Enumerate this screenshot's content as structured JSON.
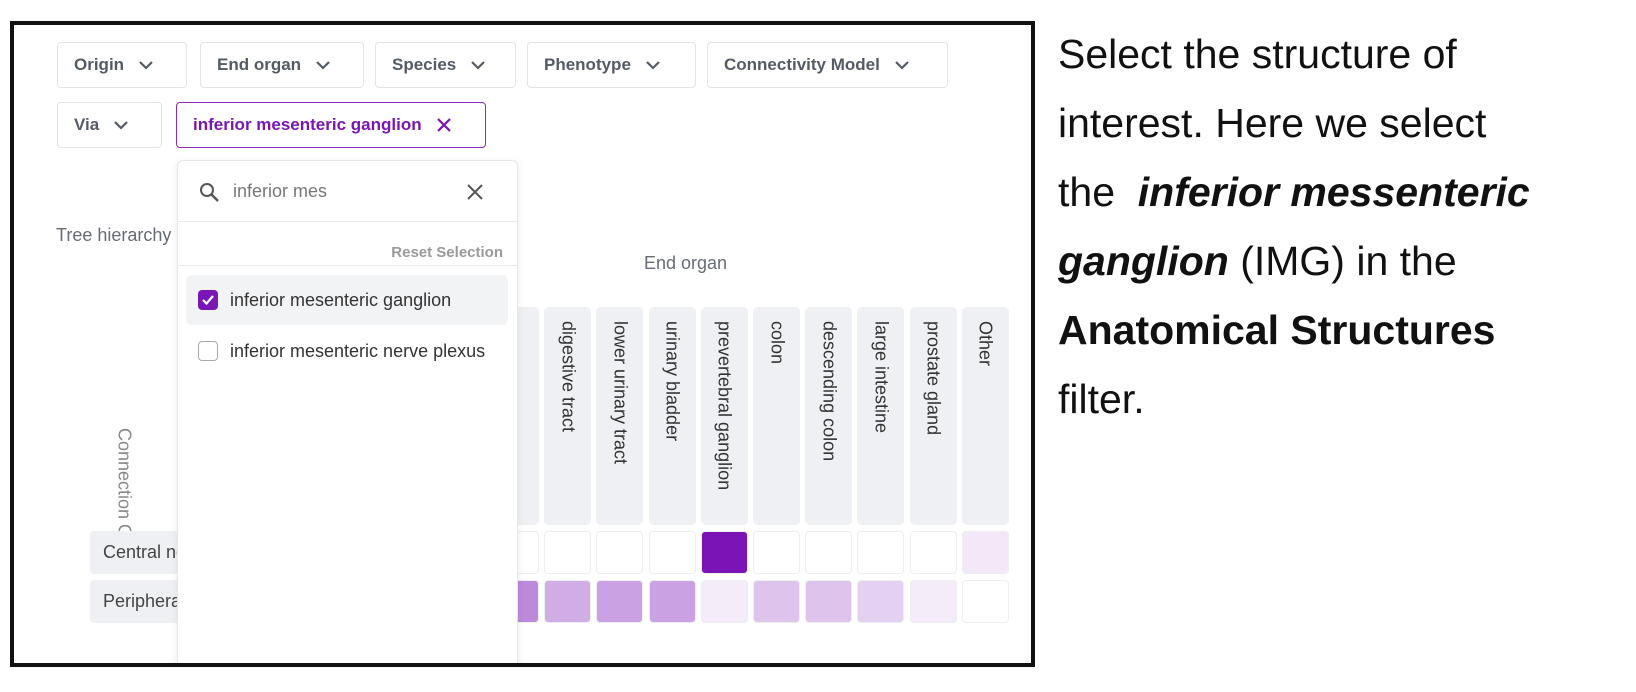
{
  "filters": [
    "Origin",
    "End organ",
    "Species",
    "Phenotype",
    "Connectivity Model",
    "Via"
  ],
  "selected_chip": "inferior mesenteric ganglion",
  "dropdown": {
    "search": "inferior mes",
    "reset": "Reset Selection",
    "options": [
      {
        "label": "inferior mesenteric ganglion",
        "checked": true
      },
      {
        "label": "inferior mesenteric nerve plexus",
        "checked": false
      }
    ]
  },
  "tree_label": "Tree hierarchy",
  "heatmap": {
    "x_title": "End organ",
    "y_title": "Connection Origin",
    "columns": [
      null,
      "digestive tract",
      "lower urinary tract",
      "urinary bladder",
      "prevertebral ganglion",
      "colon",
      "descending colon",
      "large intestine",
      "prostate gland",
      "Other"
    ],
    "rows": [
      {
        "label": "Central nervous system",
        "values": [
          0,
          0,
          0,
          0,
          1,
          0,
          0,
          0,
          0,
          0.1
        ]
      },
      {
        "label": "Peripheral nervous system",
        "values": [
          0.5,
          0.35,
          0.4,
          0.4,
          0.08,
          0.25,
          0.25,
          0.2,
          0.08,
          0
        ]
      }
    ]
  },
  "caption": [
    {
      "text": "Select the structure of",
      "style": "normal",
      "br": true
    },
    {
      "text": "interest. Here we select",
      "style": "normal",
      "br": true
    },
    {
      "text": "the  ",
      "style": "normal",
      "br": false
    },
    {
      "text": "inferior messenteric",
      "style": "bolditalic",
      "br": true
    },
    {
      "text": "ganglion",
      "style": "bolditalic",
      "br": false
    },
    {
      "text": " (IMG) in the",
      "style": "normal",
      "br": true
    },
    {
      "text": "Anatomical Structures",
      "style": "bold",
      "br": true
    },
    {
      "text": "filter.",
      "style": "normal",
      "br": false
    }
  ]
}
